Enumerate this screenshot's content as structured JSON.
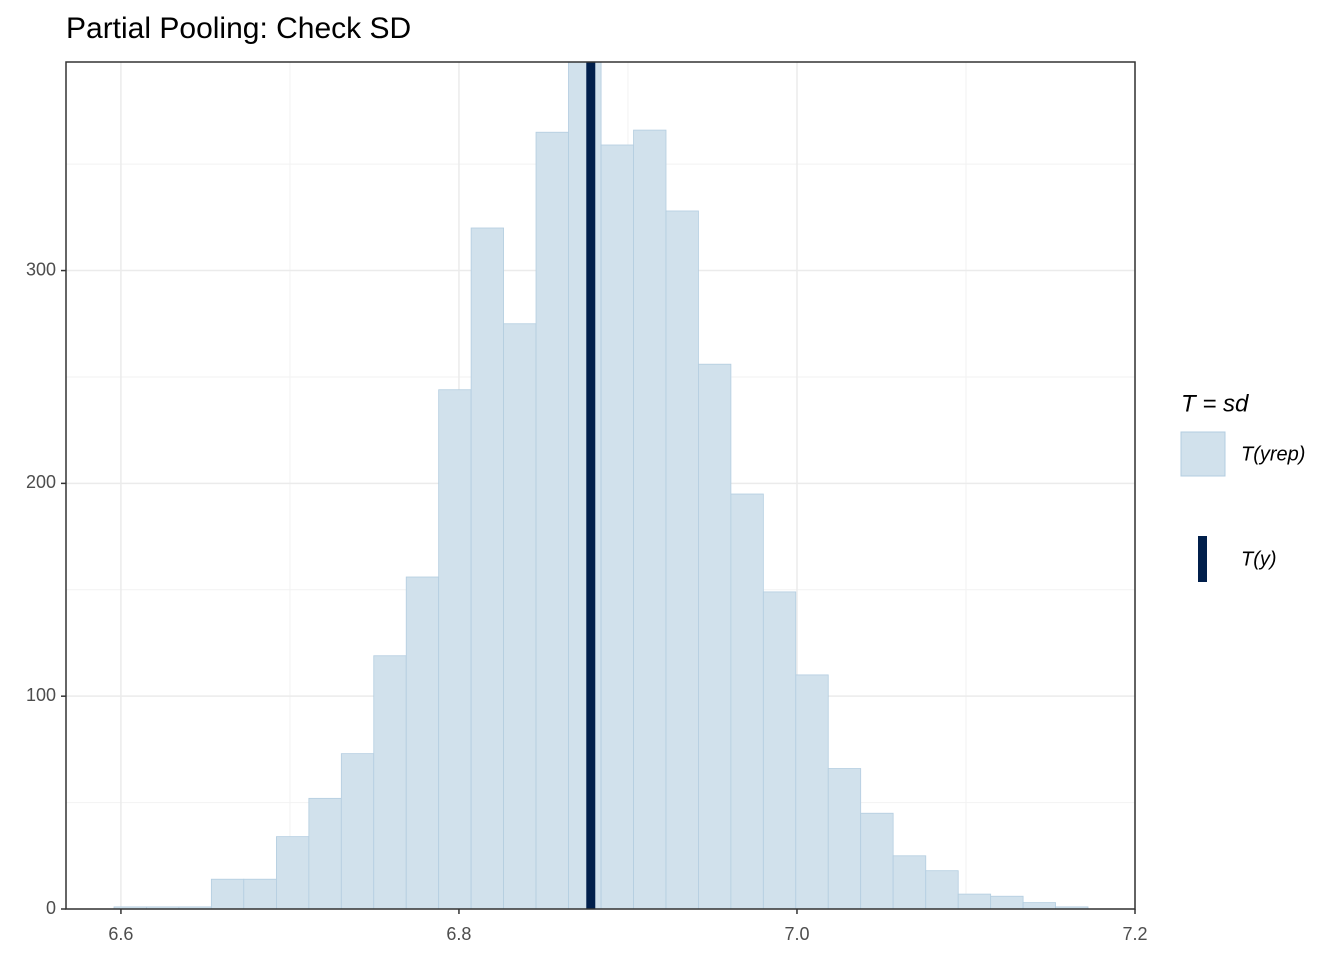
{
  "chart_data": {
    "type": "histogram",
    "title": "Partial Pooling: Check SD",
    "bins": [
      6.5959,
      6.6151,
      6.6343,
      6.6535,
      6.6727,
      6.692,
      6.7112,
      6.7304,
      6.7496,
      6.7688,
      6.788,
      6.8072,
      6.8264,
      6.8456,
      6.8648,
      6.8841,
      6.9033,
      6.9225,
      6.9417,
      6.9609,
      6.9801,
      6.9993,
      7.0185,
      7.0377,
      7.0569,
      7.0762,
      7.0954,
      7.1146,
      7.1338,
      7.153,
      7.1722
    ],
    "series": [
      {
        "name": "T(yrep)",
        "color": "#d1e1ec",
        "edge_color": "#b3cde0",
        "values": [
          1,
          1,
          1,
          14,
          14,
          34,
          52,
          73,
          119,
          156,
          244,
          320,
          275,
          365,
          398,
          359,
          366,
          328,
          256,
          195,
          149,
          110,
          66,
          45,
          25,
          18,
          7,
          6,
          3,
          1
        ]
      }
    ],
    "stat_line": {
      "name": "T(y)",
      "value": 6.878,
      "color": "#011f4b"
    },
    "legend_title": "T = sd",
    "xlim": [
      6.5675,
      7.2
    ],
    "ylim": [
      0,
      398
    ],
    "xticks": [
      6.6,
      6.8,
      {
        "value": 7,
        "label": "7.0"
      },
      7.2
    ],
    "yticks": [
      0,
      100,
      200,
      300
    ],
    "x_minor_ticks": [
      6.7,
      6.9,
      7.1
    ],
    "y_minor_ticks": [
      50,
      150,
      250,
      350
    ],
    "grid": true,
    "legend": "right"
  }
}
